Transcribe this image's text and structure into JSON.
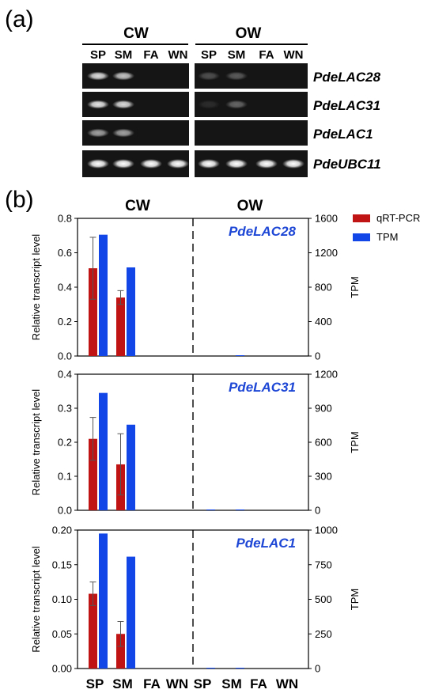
{
  "panel_a": {
    "label": "(a)",
    "groups": [
      "CW",
      "OW"
    ],
    "lanes": [
      "SP",
      "SM",
      "FA",
      "WN",
      "SP",
      "SM",
      "FA",
      "WN"
    ],
    "genes": [
      "PdeLAC28",
      "PdeLAC31",
      "PdeLAC1",
      "PdeUBC11"
    ],
    "band_intensity": [
      [
        0.85,
        0.75,
        0,
        0,
        0.25,
        0.3,
        0,
        0
      ],
      [
        0.9,
        0.85,
        0,
        0,
        0.1,
        0.35,
        0,
        0
      ],
      [
        0.6,
        0.6,
        0,
        0,
        0,
        0,
        0,
        0
      ],
      [
        1,
        1,
        1,
        1,
        1,
        1,
        1,
        1
      ]
    ]
  },
  "panel_b": {
    "label": "(b)",
    "groups": [
      "CW",
      "OW"
    ],
    "legend": [
      "qRT-PCR",
      "TPM"
    ]
  },
  "colors": {
    "qrt": "#c01414",
    "tpm": "#1246e6",
    "gene_label": "#1e47d6"
  },
  "chart_data": [
    {
      "type": "bar",
      "title": "PdeLAC28",
      "categories": [
        "SP",
        "SM",
        "FA",
        "WN",
        "SP",
        "SM",
        "FA",
        "WN"
      ],
      "ylabel": "Relative transcript level",
      "y2label": "TPM",
      "ylim": [
        0,
        0.8
      ],
      "yticks": [
        "0.0",
        "0.2",
        "0.4",
        "0.6",
        "0.8"
      ],
      "y2lim": [
        0,
        1600
      ],
      "y2ticks": [
        "0",
        "400",
        "800",
        "1200",
        "1600"
      ],
      "series": [
        {
          "name": "qRT-PCR",
          "axis": "left",
          "values": [
            0.51,
            0.34,
            0,
            0,
            0,
            0,
            0,
            0
          ],
          "errors": [
            0.18,
            0.04,
            0,
            0,
            0,
            0,
            0,
            0
          ]
        },
        {
          "name": "TPM",
          "axis": "right",
          "values": [
            1410,
            1030,
            0,
            0,
            0,
            5,
            0,
            0
          ]
        }
      ]
    },
    {
      "type": "bar",
      "title": "PdeLAC31",
      "categories": [
        "SP",
        "SM",
        "FA",
        "WN",
        "SP",
        "SM",
        "FA",
        "WN"
      ],
      "ylabel": "Relative transcript level",
      "y2label": "TPM",
      "ylim": [
        0,
        0.4
      ],
      "yticks": [
        "0.0",
        "0.1",
        "0.2",
        "0.3",
        "0.4"
      ],
      "y2lim": [
        0,
        1200
      ],
      "y2ticks": [
        "0",
        "300",
        "600",
        "900",
        "1200"
      ],
      "series": [
        {
          "name": "qRT-PCR",
          "axis": "left",
          "values": [
            0.21,
            0.135,
            0,
            0,
            0,
            0,
            0,
            0
          ],
          "errors": [
            0.063,
            0.09,
            0,
            0,
            0,
            0,
            0,
            0
          ]
        },
        {
          "name": "TPM",
          "axis": "right",
          "values": [
            1035,
            755,
            0,
            0,
            3,
            3,
            0,
            0
          ]
        }
      ]
    },
    {
      "type": "bar",
      "title": "PdeLAC1",
      "categories": [
        "SP",
        "SM",
        "FA",
        "WN",
        "SP",
        "SM",
        "FA",
        "WN"
      ],
      "ylabel": "Relative transcript level",
      "y2label": "TPM",
      "ylim": [
        0,
        0.2
      ],
      "yticks": [
        "0.00",
        "0.05",
        "0.10",
        "0.15",
        "0.20"
      ],
      "y2lim": [
        0,
        1000
      ],
      "y2ticks": [
        "0",
        "250",
        "500",
        "750",
        "1000"
      ],
      "series": [
        {
          "name": "qRT-PCR",
          "axis": "left",
          "values": [
            0.108,
            0.05,
            0,
            0,
            0,
            0,
            0,
            0
          ],
          "errors": [
            0.017,
            0.018,
            0,
            0,
            0,
            0,
            0,
            0
          ]
        },
        {
          "name": "TPM",
          "axis": "right",
          "values": [
            975,
            808,
            0,
            0,
            2,
            5,
            0,
            0
          ]
        }
      ]
    }
  ]
}
